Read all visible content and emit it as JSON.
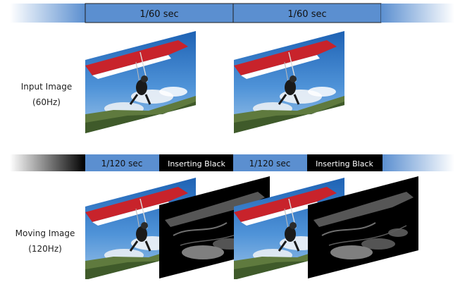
{
  "top_timeline": {
    "segment_1": "1/60 sec",
    "segment_2": "1/60 sec"
  },
  "bottom_timeline": {
    "segment_1": "1/120 sec",
    "segment_2": "Inserting Black",
    "segment_3": "1/120 sec",
    "segment_4": "Inserting Black"
  },
  "row_labels": {
    "input_line1": "Input Image",
    "input_line2": "(60Hz)",
    "moving_line1": "Moving Image",
    "moving_line2": "(120Hz)"
  },
  "colors": {
    "segment_blue": "#5b8fd0",
    "black_segment": "#000000",
    "sky_blue": "#2f79c6",
    "wing_red": "#c8232b"
  },
  "icons": [
    "hang-glider-photo",
    "black-inserted-frame"
  ]
}
